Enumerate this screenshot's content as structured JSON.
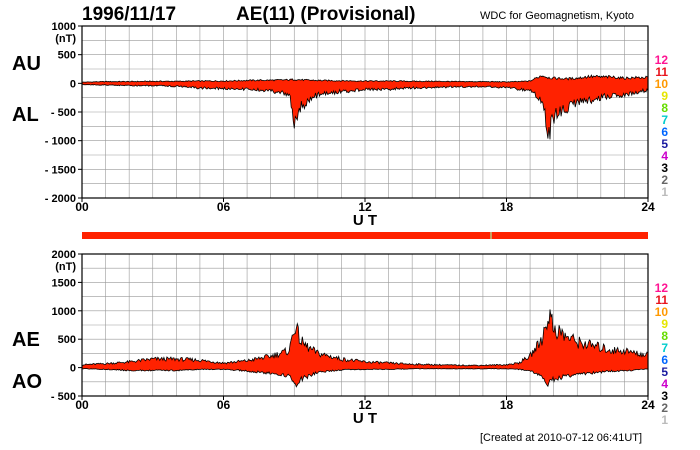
{
  "header": {
    "date": "1996/11/17",
    "title": "AE(11) (Provisional)",
    "organization": "WDC for Geomagnetism, Kyoto"
  },
  "footer": {
    "created": "[Created at 2010-07-12 06:41UT]"
  },
  "colors": {
    "fill": "#ff2200",
    "line": "#000000",
    "grid": "#999999",
    "availability_bar": "#ff2200"
  },
  "availability_bar": {
    "color": "#ff2200",
    "marker_at_hour": 17.3,
    "marker_color": "#c8a060"
  },
  "station_count_scale": {
    "labels": [
      "12",
      "11",
      "10",
      "9",
      "8",
      "7",
      "6",
      "5",
      "4",
      "3",
      "2",
      "1"
    ],
    "colors": [
      "#ff1493",
      "#e8141c",
      "#ff9900",
      "#e6e600",
      "#66dd00",
      "#00cccc",
      "#0066ff",
      "#1a1aa0",
      "#cc00cc",
      "#000000",
      "#666666",
      "#bbbbbb"
    ]
  },
  "chart_data": [
    {
      "type": "area",
      "id": "au-al",
      "ylabel": "(nT)",
      "xlabel": "U T",
      "left_labels": [
        "AU",
        "AL"
      ],
      "ylim": [
        -2000,
        1000
      ],
      "yticks": [
        1000,
        500,
        0,
        -500,
        -1000,
        -1500,
        -2000
      ],
      "ytick_labels": [
        "1000",
        "500",
        "0",
        "- 500",
        "- 1000",
        "- 1500",
        "- 2000"
      ],
      "xlim": [
        0,
        24
      ],
      "xticks": [
        0,
        6,
        12,
        18,
        24
      ],
      "xtick_labels": [
        "00",
        "06",
        "12",
        "18",
        "24"
      ],
      "hours": [
        0,
        1,
        2,
        3,
        4,
        5,
        6,
        7,
        8,
        8.8,
        9,
        9.3,
        9.6,
        10,
        11,
        12,
        13,
        14,
        15,
        16,
        17,
        18,
        18.5,
        19,
        19.5,
        19.8,
        20,
        20.5,
        21,
        21.5,
        22,
        22.5,
        23,
        23.5,
        24
      ],
      "series": [
        {
          "name": "AU",
          "values": [
            20,
            30,
            30,
            35,
            35,
            40,
            40,
            50,
            55,
            60,
            70,
            60,
            55,
            50,
            45,
            40,
            40,
            35,
            35,
            30,
            30,
            25,
            30,
            40,
            140,
            100,
            90,
            80,
            90,
            120,
            110,
            110,
            90,
            100,
            100
          ]
        },
        {
          "name": "AL",
          "values": [
            -20,
            -30,
            -40,
            -40,
            -50,
            -80,
            -90,
            -100,
            -130,
            -200,
            -700,
            -400,
            -300,
            -200,
            -140,
            -110,
            -100,
            -80,
            -70,
            -60,
            -60,
            -70,
            -100,
            -130,
            -300,
            -900,
            -600,
            -450,
            -350,
            -300,
            -250,
            -200,
            -200,
            -150,
            -120
          ]
        }
      ]
    },
    {
      "type": "area",
      "id": "ae-ao",
      "ylabel": "(nT)",
      "xlabel": "U T",
      "left_labels": [
        "AE",
        "AO"
      ],
      "ylim": [
        -500,
        2000
      ],
      "yticks": [
        2000,
        1500,
        1000,
        500,
        0,
        -500
      ],
      "ytick_labels": [
        "2000",
        "1500",
        "1000",
        "500",
        "0",
        "- 500"
      ],
      "xlim": [
        0,
        24
      ],
      "xticks": [
        0,
        6,
        12,
        18,
        24
      ],
      "xtick_labels": [
        "00",
        "06",
        "12",
        "18",
        "24"
      ],
      "hours": [
        0,
        1,
        2,
        3,
        4,
        5,
        6,
        7,
        8,
        8.8,
        9,
        9.3,
        9.6,
        10,
        11,
        12,
        13,
        14,
        15,
        16,
        17,
        18,
        18.5,
        19,
        19.5,
        19.8,
        20,
        20.5,
        21,
        21.5,
        22,
        22.5,
        23,
        23.5,
        24
      ],
      "series": [
        {
          "name": "AE",
          "values": [
            50,
            70,
            100,
            150,
            150,
            130,
            80,
            120,
            200,
            300,
            750,
            450,
            350,
            250,
            150,
            100,
            80,
            60,
            50,
            40,
            40,
            50,
            80,
            200,
            500,
            950,
            700,
            550,
            450,
            400,
            350,
            300,
            300,
            250,
            220
          ]
        },
        {
          "name": "AO",
          "values": [
            -20,
            -30,
            -50,
            -50,
            -50,
            -30,
            -30,
            -60,
            -100,
            -150,
            -300,
            -200,
            -150,
            -80,
            -40,
            -30,
            -30,
            -20,
            -20,
            -20,
            -20,
            -20,
            -30,
            -60,
            -150,
            -300,
            -200,
            -150,
            -120,
            -100,
            -80,
            -60,
            -60,
            -40,
            -20
          ]
        }
      ]
    }
  ]
}
